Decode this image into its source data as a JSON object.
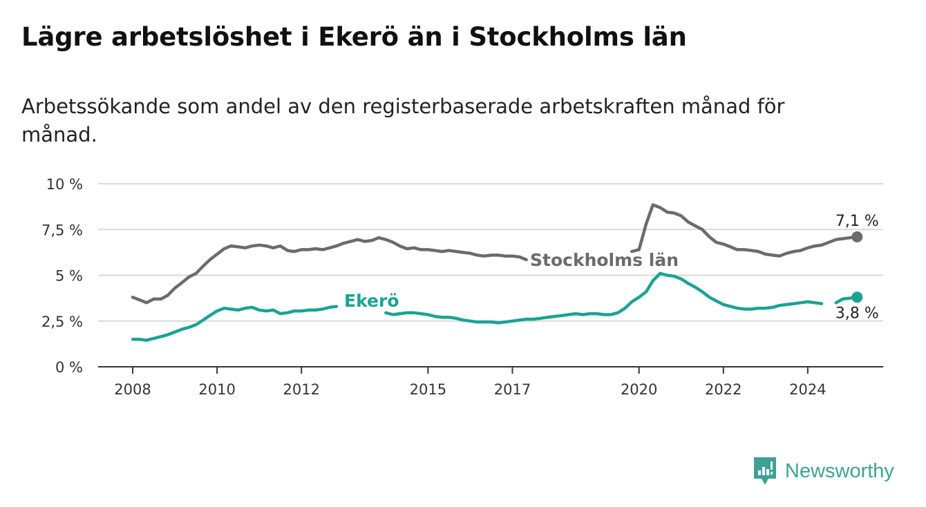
{
  "title": "Lägre arbetslöshet i Ekerö än i Stockholms län",
  "subtitle": "Arbetssökande som andel av den registerbaserade arbetskraften månad för månad.",
  "brand": {
    "name": "Newsworthy",
    "icon": "newsworthy-logo-icon"
  },
  "colors": {
    "stockholm": "#6b6b6d",
    "ekero": "#1aa394",
    "grid": "#d9d9d9",
    "axis": "#333333"
  },
  "chart_data": {
    "type": "line",
    "title": "Lägre arbetslöshet i Ekerö än i Stockholms län",
    "subtitle": "Arbetssökande som andel av den registerbaserade arbetskraften månad för månad.",
    "xlabel": "",
    "ylabel": "",
    "xlim": [
      2008.0,
      2026.0
    ],
    "ylim": [
      0,
      10
    ],
    "grid": true,
    "x_ticks": [
      2008,
      2010,
      2012,
      2015,
      2017,
      2020,
      2022,
      2024
    ],
    "x_tick_labels": [
      "2008",
      "2010",
      "2012",
      "2015",
      "2017",
      "2020",
      "2022",
      "2024"
    ],
    "y_ticks": [
      0,
      2.5,
      5,
      7.5,
      10
    ],
    "y_tick_labels": [
      "0 %",
      "2,5 %",
      "5 %",
      "7,5 %",
      "10 %"
    ],
    "series": [
      {
        "name": "Stockholms län",
        "end_label": "7,1 %",
        "points": [
          [
            2008.0,
            3.8
          ],
          [
            2008.17,
            3.65
          ],
          [
            2008.33,
            3.5
          ],
          [
            2008.5,
            3.7
          ],
          [
            2008.67,
            3.7
          ],
          [
            2008.83,
            3.9
          ],
          [
            2009.0,
            4.3
          ],
          [
            2009.17,
            4.6
          ],
          [
            2009.33,
            4.9
          ],
          [
            2009.5,
            5.1
          ],
          [
            2009.67,
            5.5
          ],
          [
            2009.83,
            5.85
          ],
          [
            2010.0,
            6.15
          ],
          [
            2010.17,
            6.45
          ],
          [
            2010.33,
            6.6
          ],
          [
            2010.5,
            6.55
          ],
          [
            2010.67,
            6.5
          ],
          [
            2010.83,
            6.6
          ],
          [
            2011.0,
            6.65
          ],
          [
            2011.17,
            6.6
          ],
          [
            2011.33,
            6.5
          ],
          [
            2011.5,
            6.6
          ],
          [
            2011.67,
            6.35
          ],
          [
            2011.83,
            6.3
          ],
          [
            2012.0,
            6.4
          ],
          [
            2012.17,
            6.4
          ],
          [
            2012.33,
            6.45
          ],
          [
            2012.5,
            6.4
          ],
          [
            2012.67,
            6.5
          ],
          [
            2012.83,
            6.6
          ],
          [
            2013.0,
            6.75
          ],
          [
            2013.17,
            6.85
          ],
          [
            2013.33,
            6.95
          ],
          [
            2013.5,
            6.85
          ],
          [
            2013.67,
            6.9
          ],
          [
            2013.83,
            7.05
          ],
          [
            2014.0,
            6.95
          ],
          [
            2014.17,
            6.8
          ],
          [
            2014.33,
            6.6
          ],
          [
            2014.5,
            6.45
          ],
          [
            2014.67,
            6.5
          ],
          [
            2014.83,
            6.4
          ],
          [
            2015.0,
            6.4
          ],
          [
            2015.17,
            6.35
          ],
          [
            2015.33,
            6.3
          ],
          [
            2015.5,
            6.35
          ],
          [
            2015.67,
            6.3
          ],
          [
            2015.83,
            6.25
          ],
          [
            2016.0,
            6.2
          ],
          [
            2016.17,
            6.1
          ],
          [
            2016.33,
            6.05
          ],
          [
            2016.5,
            6.1
          ],
          [
            2016.67,
            6.1
          ],
          [
            2016.83,
            6.05
          ],
          [
            2017.0,
            6.05
          ],
          [
            2017.17,
            6.0
          ],
          [
            2017.33,
            5.85
          ],
          [
            2019.83,
            6.3
          ],
          [
            2020.0,
            6.4
          ],
          [
            2020.17,
            7.8
          ],
          [
            2020.33,
            8.85
          ],
          [
            2020.5,
            8.7
          ],
          [
            2020.67,
            8.45
          ],
          [
            2020.83,
            8.4
          ],
          [
            2021.0,
            8.25
          ],
          [
            2021.17,
            7.9
          ],
          [
            2021.33,
            7.7
          ],
          [
            2021.5,
            7.5
          ],
          [
            2021.67,
            7.1
          ],
          [
            2021.83,
            6.8
          ],
          [
            2022.0,
            6.7
          ],
          [
            2022.17,
            6.55
          ],
          [
            2022.33,
            6.4
          ],
          [
            2022.5,
            6.4
          ],
          [
            2022.67,
            6.35
          ],
          [
            2022.83,
            6.3
          ],
          [
            2023.0,
            6.15
          ],
          [
            2023.17,
            6.1
          ],
          [
            2023.33,
            6.05
          ],
          [
            2023.5,
            6.2
          ],
          [
            2023.67,
            6.3
          ],
          [
            2023.83,
            6.35
          ],
          [
            2024.0,
            6.5
          ],
          [
            2024.17,
            6.6
          ],
          [
            2024.33,
            6.65
          ],
          [
            2024.5,
            6.8
          ],
          [
            2024.67,
            6.95
          ],
          [
            2024.83,
            7.0
          ],
          [
            2025.0,
            7.05
          ],
          [
            2025.17,
            7.1
          ]
        ]
      },
      {
        "name": "Ekerö",
        "end_label": "3,8 %",
        "points": [
          [
            2008.0,
            1.5
          ],
          [
            2008.17,
            1.5
          ],
          [
            2008.33,
            1.45
          ],
          [
            2008.5,
            1.55
          ],
          [
            2008.67,
            1.65
          ],
          [
            2008.83,
            1.75
          ],
          [
            2009.0,
            1.9
          ],
          [
            2009.17,
            2.05
          ],
          [
            2009.33,
            2.15
          ],
          [
            2009.5,
            2.3
          ],
          [
            2009.67,
            2.55
          ],
          [
            2009.83,
            2.8
          ],
          [
            2010.0,
            3.05
          ],
          [
            2010.17,
            3.2
          ],
          [
            2010.33,
            3.15
          ],
          [
            2010.5,
            3.1
          ],
          [
            2010.67,
            3.2
          ],
          [
            2010.83,
            3.25
          ],
          [
            2011.0,
            3.1
          ],
          [
            2011.17,
            3.05
          ],
          [
            2011.33,
            3.1
          ],
          [
            2011.5,
            2.9
          ],
          [
            2011.67,
            2.95
          ],
          [
            2011.83,
            3.05
          ],
          [
            2012.0,
            3.05
          ],
          [
            2012.17,
            3.1
          ],
          [
            2012.33,
            3.1
          ],
          [
            2012.5,
            3.15
          ],
          [
            2012.67,
            3.25
          ],
          [
            2012.83,
            3.3
          ],
          [
            2014.0,
            2.95
          ],
          [
            2014.17,
            2.85
          ],
          [
            2014.33,
            2.9
          ],
          [
            2014.5,
            2.95
          ],
          [
            2014.67,
            2.95
          ],
          [
            2014.83,
            2.9
          ],
          [
            2015.0,
            2.85
          ],
          [
            2015.17,
            2.75
          ],
          [
            2015.33,
            2.7
          ],
          [
            2015.5,
            2.7
          ],
          [
            2015.67,
            2.65
          ],
          [
            2015.83,
            2.55
          ],
          [
            2016.0,
            2.5
          ],
          [
            2016.17,
            2.45
          ],
          [
            2016.33,
            2.45
          ],
          [
            2016.5,
            2.45
          ],
          [
            2016.67,
            2.4
          ],
          [
            2016.83,
            2.45
          ],
          [
            2017.0,
            2.5
          ],
          [
            2017.17,
            2.55
          ],
          [
            2017.33,
            2.6
          ],
          [
            2017.5,
            2.6
          ],
          [
            2017.67,
            2.65
          ],
          [
            2017.83,
            2.7
          ],
          [
            2018.0,
            2.75
          ],
          [
            2018.17,
            2.8
          ],
          [
            2018.33,
            2.85
          ],
          [
            2018.5,
            2.9
          ],
          [
            2018.67,
            2.85
          ],
          [
            2018.83,
            2.9
          ],
          [
            2019.0,
            2.9
          ],
          [
            2019.17,
            2.85
          ],
          [
            2019.33,
            2.85
          ],
          [
            2019.5,
            2.95
          ],
          [
            2019.67,
            3.2
          ],
          [
            2019.83,
            3.55
          ],
          [
            2020.0,
            3.8
          ],
          [
            2020.17,
            4.1
          ],
          [
            2020.33,
            4.7
          ],
          [
            2020.5,
            5.1
          ],
          [
            2020.67,
            5.0
          ],
          [
            2020.83,
            4.95
          ],
          [
            2021.0,
            4.8
          ],
          [
            2021.17,
            4.55
          ],
          [
            2021.33,
            4.35
          ],
          [
            2021.5,
            4.1
          ],
          [
            2021.67,
            3.8
          ],
          [
            2021.83,
            3.6
          ],
          [
            2022.0,
            3.4
          ],
          [
            2022.17,
            3.3
          ],
          [
            2022.33,
            3.2
          ],
          [
            2022.5,
            3.15
          ],
          [
            2022.67,
            3.15
          ],
          [
            2022.83,
            3.2
          ],
          [
            2023.0,
            3.2
          ],
          [
            2023.17,
            3.25
          ],
          [
            2023.33,
            3.35
          ],
          [
            2023.5,
            3.4
          ],
          [
            2023.67,
            3.45
          ],
          [
            2023.83,
            3.5
          ],
          [
            2024.0,
            3.55
          ],
          [
            2024.17,
            3.5
          ],
          [
            2024.33,
            3.45
          ],
          [
            2024.67,
            3.5
          ],
          [
            2024.83,
            3.7
          ],
          [
            2025.0,
            3.75
          ],
          [
            2025.17,
            3.8
          ]
        ]
      }
    ]
  }
}
